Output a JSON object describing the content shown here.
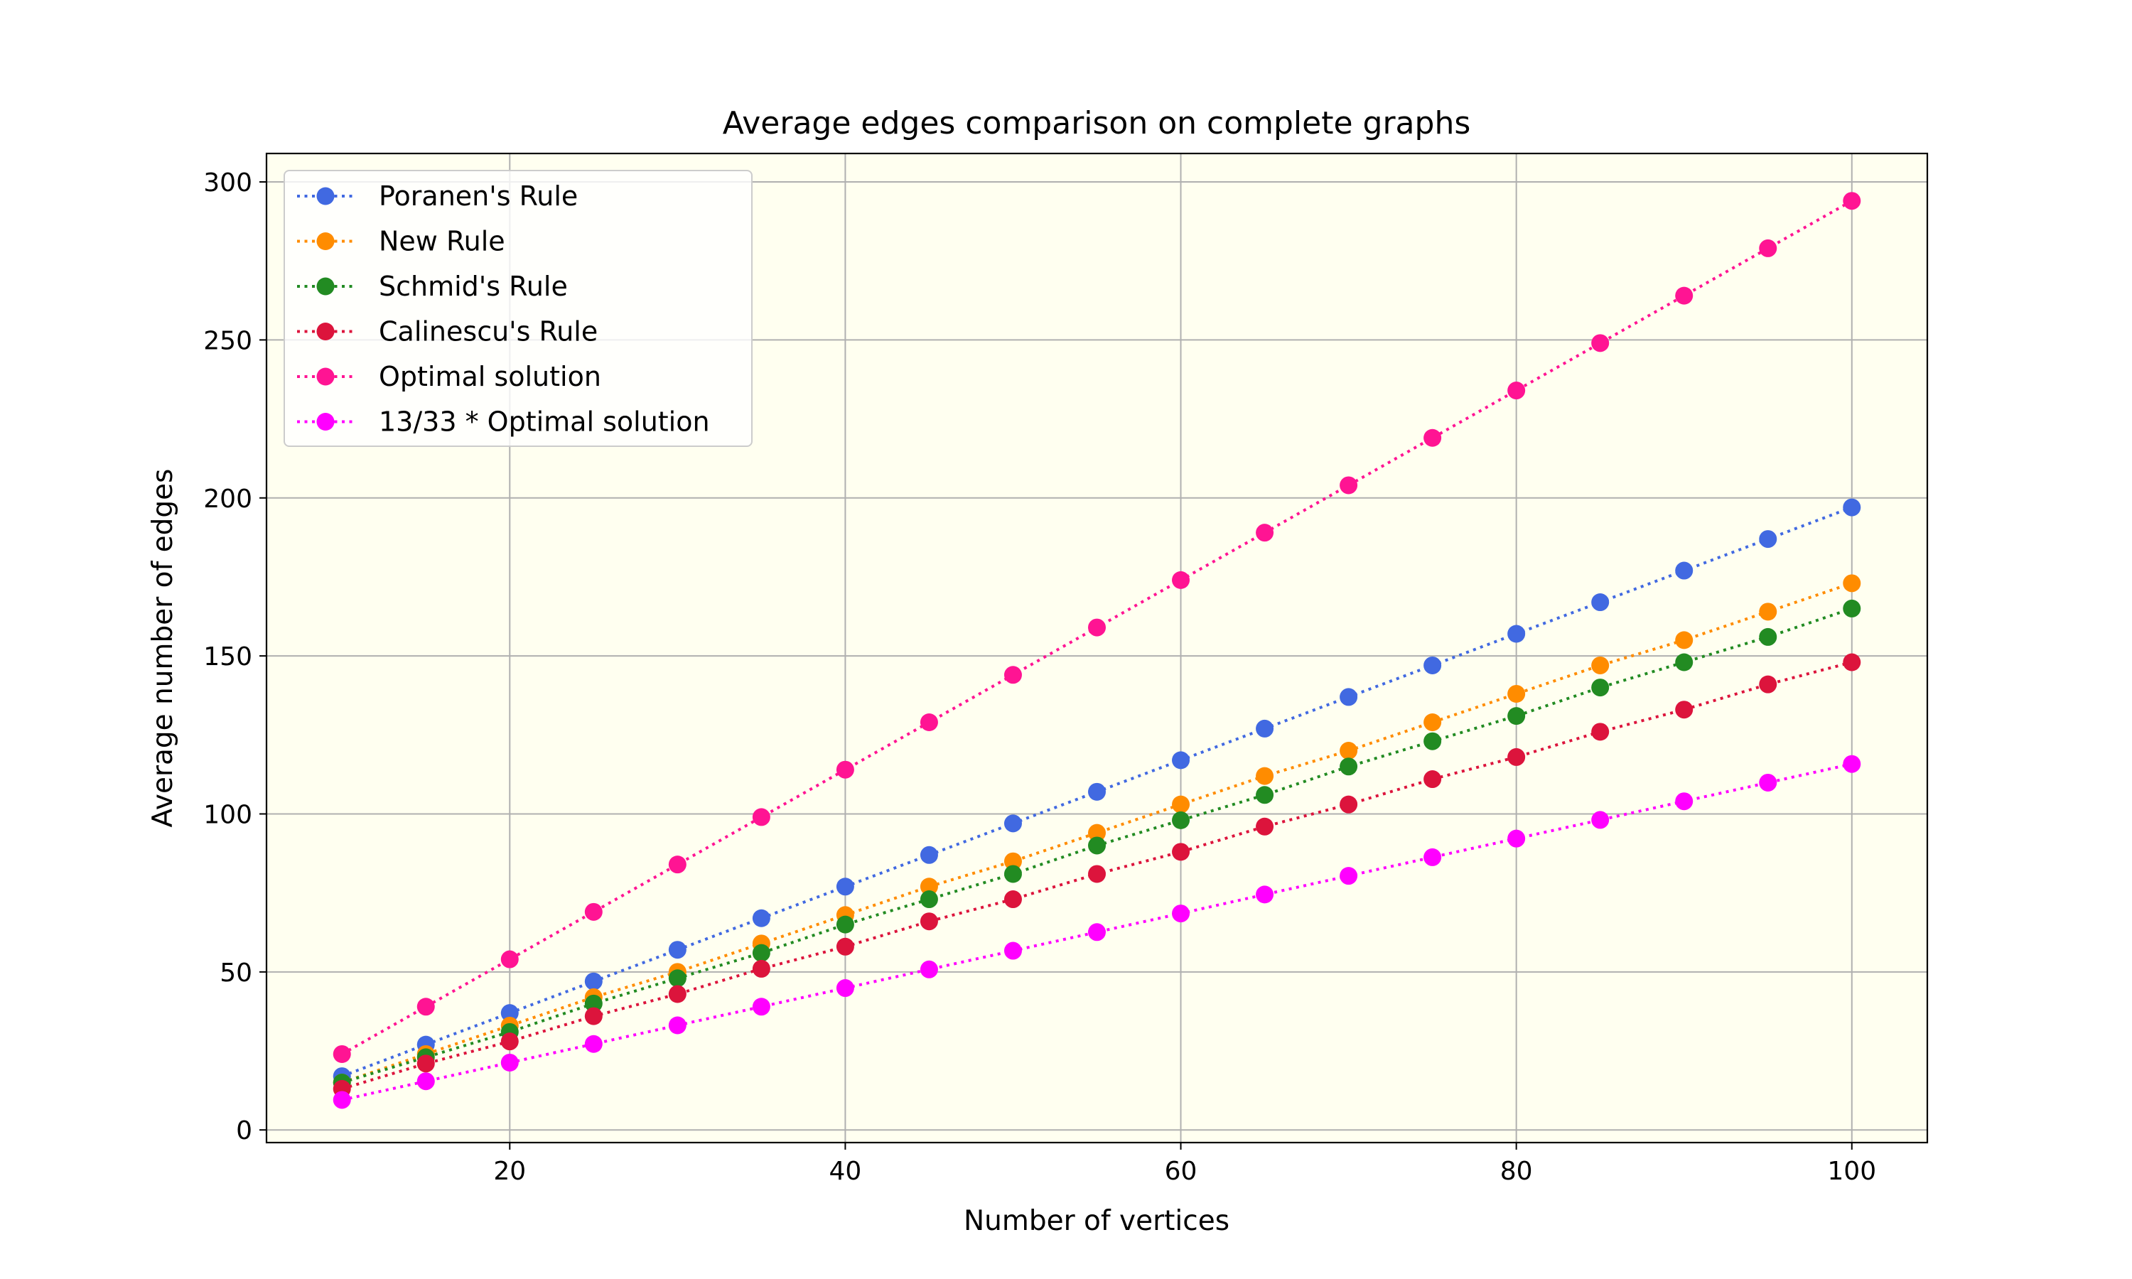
{
  "chart_data": {
    "type": "line",
    "title": "Average edges comparison on complete graphs",
    "xlabel": "Number of vertices",
    "ylabel": "Average number of edges",
    "xlim": [
      5.5,
      104.5
    ],
    "ylim": [
      -4,
      309
    ],
    "xticks": [
      20,
      40,
      60,
      80,
      100
    ],
    "yticks": [
      0,
      50,
      100,
      150,
      200,
      250,
      300
    ],
    "grid": true,
    "legend": "top-left",
    "background": "#fffff0",
    "x": [
      10,
      15,
      20,
      25,
      30,
      35,
      40,
      45,
      50,
      55,
      60,
      65,
      70,
      75,
      80,
      85,
      90,
      95,
      100
    ],
    "series": [
      {
        "name": "Poranen's Rule",
        "color": "#4169e1",
        "values": [
          17,
          27,
          37,
          47,
          57,
          67,
          77,
          87,
          97,
          107,
          117,
          127,
          137,
          147,
          157,
          167,
          177,
          187,
          197
        ]
      },
      {
        "name": "New Rule",
        "color": "#ff8c00",
        "values": [
          15,
          24,
          33,
          42,
          50,
          59,
          68,
          77,
          85,
          94,
          103,
          112,
          120,
          129,
          138,
          147,
          155,
          164,
          173
        ]
      },
      {
        "name": "Schmid's Rule",
        "color": "#228b22",
        "values": [
          15,
          23,
          31,
          40,
          48,
          56,
          65,
          73,
          81,
          90,
          98,
          106,
          115,
          123,
          131,
          140,
          148,
          156,
          165
        ]
      },
      {
        "name": "Calinescu's Rule",
        "color": "#dc143c",
        "values": [
          13,
          21,
          28,
          36,
          43,
          51,
          58,
          66,
          73,
          81,
          88,
          96,
          103,
          111,
          118,
          126,
          133,
          141,
          148
        ]
      },
      {
        "name": "Optimal solution",
        "color": "#ff1493",
        "values": [
          24,
          39,
          54,
          69,
          84,
          99,
          114,
          129,
          144,
          159,
          174,
          189,
          204,
          219,
          234,
          249,
          264,
          279,
          294
        ]
      },
      {
        "name": "13/33 * Optimal solution",
        "color": "#ff00ff",
        "values": [
          9.5,
          15.4,
          21.3,
          27.2,
          33.1,
          39.0,
          44.9,
          50.8,
          56.7,
          62.6,
          68.5,
          74.5,
          80.4,
          86.3,
          92.2,
          98.1,
          104.0,
          109.9,
          115.8
        ]
      }
    ]
  }
}
